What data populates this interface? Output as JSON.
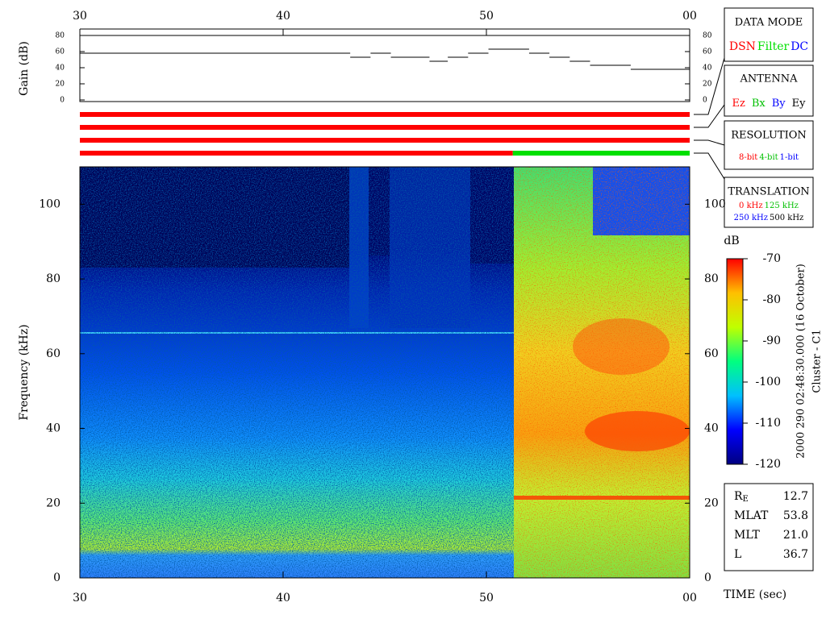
{
  "chart_data": [
    {
      "type": "line",
      "step": "post",
      "ylabel": "Gain (dB)",
      "xlim": [
        30,
        60
      ],
      "xticks": [
        30,
        40,
        50,
        {
          "value": 60,
          "label": "00"
        }
      ],
      "ylim": [
        0,
        80
      ],
      "yticks": [
        0,
        20,
        40,
        60,
        80
      ],
      "series": [
        {
          "color": "#000000",
          "x": [
            30,
            43.3,
            44.3,
            45.3,
            47.2,
            48.1,
            49.1,
            50.1,
            52.1,
            53.1,
            54.1,
            55.1,
            57.1
          ],
          "values": [
            58,
            53,
            58,
            53,
            48,
            53,
            58,
            63,
            58,
            53,
            48,
            43,
            38
          ]
        }
      ],
      "indicator_bars": [
        {
          "segments": [
            {
              "start": 30,
              "end": 60,
              "color": "#ff0000"
            }
          ]
        },
        {
          "segments": [
            {
              "start": 30,
              "end": 60,
              "color": "#ff0000"
            }
          ]
        },
        {
          "segments": [
            {
              "start": 30,
              "end": 60,
              "color": "#ff0000"
            }
          ]
        },
        {
          "segments": [
            {
              "start": 30,
              "end": 51.3,
              "color": "#ff0000"
            },
            {
              "start": 51.3,
              "end": 60,
              "color": "#00e000"
            }
          ]
        }
      ]
    },
    {
      "type": "heatmap",
      "ylabel": "Frequency (kHz)",
      "xlabel": "TIME (sec)",
      "xlim": [
        30,
        60
      ],
      "xticks": [
        30,
        40,
        50,
        {
          "value": 60,
          "label": "00"
        }
      ],
      "ylim": [
        0,
        110
      ],
      "yticks": [
        0,
        20,
        40,
        60,
        80,
        100
      ],
      "colorbar": {
        "label": "dB",
        "lim": [
          -120,
          -70
        ],
        "ticks": [
          -120,
          -110,
          -100,
          -90,
          -80,
          -70
        ],
        "colors": [
          "#000080",
          "#0000ff",
          "#00c0ff",
          "#00ff80",
          "#c0ff00",
          "#ffc000",
          "#ff0000"
        ]
      },
      "annotations": [
        "2000 290 02:48:30.000 (16 October)",
        "Cluster - C1"
      ]
    }
  ],
  "panels": [
    {
      "title": "DATA MODE",
      "rows": [
        [
          {
            "text": "DSN",
            "color": "#ff0000"
          },
          {
            "text": "Filter",
            "color": "#00e000"
          },
          {
            "text": "DC",
            "color": "#0000ff"
          }
        ]
      ]
    },
    {
      "title": "ANTENNA",
      "rows": [
        [
          {
            "text": "Ez",
            "color": "#ff0000"
          },
          {
            "text": "Bx",
            "color": "#00c000"
          },
          {
            "text": "By",
            "color": "#0000ff"
          },
          {
            "text": "Ey",
            "color": "#000000"
          }
        ]
      ]
    },
    {
      "title": "RESOLUTION",
      "rows": [
        [
          {
            "text": "8-bit",
            "color": "#ff0000"
          },
          {
            "text": "4-bit",
            "color": "#00c000"
          },
          {
            "text": "1-bit",
            "color": "#0000ff"
          }
        ]
      ]
    },
    {
      "title": "TRANSLATION",
      "rows": [
        [
          {
            "text": "0 kHz",
            "color": "#ff0000"
          },
          {
            "text": "125 kHz",
            "color": "#00c000"
          }
        ],
        [
          {
            "text": "250 kHz",
            "color": "#0000ff"
          },
          {
            "text": "500 kHz",
            "color": "#000000"
          }
        ]
      ]
    }
  ],
  "info": [
    {
      "label": "R",
      "sub": "E",
      "value": "12.7"
    },
    {
      "label": "MLAT",
      "value": "53.8"
    },
    {
      "label": "MLT",
      "value": "21.0"
    },
    {
      "label": "L",
      "value": "36.7"
    }
  ]
}
